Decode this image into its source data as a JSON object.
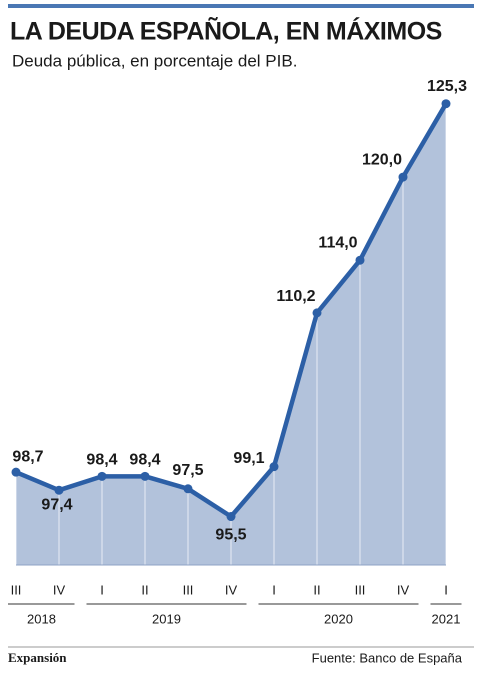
{
  "chart_data": {
    "type": "area-line",
    "title": "LA DEUDA ESPAÑOLA, EN MÁXIMOS",
    "subtitle": "Deuda pública, en porcentaje del PIB.",
    "categories": [
      "III",
      "IV",
      "I",
      "II",
      "III",
      "IV",
      "I",
      "II",
      "III",
      "IV",
      "I"
    ],
    "x_groups": [
      {
        "label": "2018",
        "count": 2
      },
      {
        "label": "2019",
        "count": 4
      },
      {
        "label": "2020",
        "count": 4
      },
      {
        "label": "2021",
        "count": 1
      }
    ],
    "values": [
      98.7,
      97.4,
      98.4,
      98.4,
      97.5,
      95.5,
      99.1,
      110.2,
      114.0,
      120.0,
      125.3
    ],
    "value_labels": [
      "98,7",
      "97,4",
      "98,4",
      "98,4",
      "97,5",
      "95,5",
      "99,1",
      "110,2",
      "114,0",
      "120,0",
      "125,3"
    ],
    "color": "#2c5fa6",
    "fill": "#b2c2db",
    "ylim": [
      92,
      126
    ],
    "source": "Fuente: Banco de España",
    "brand": "Expansión"
  }
}
